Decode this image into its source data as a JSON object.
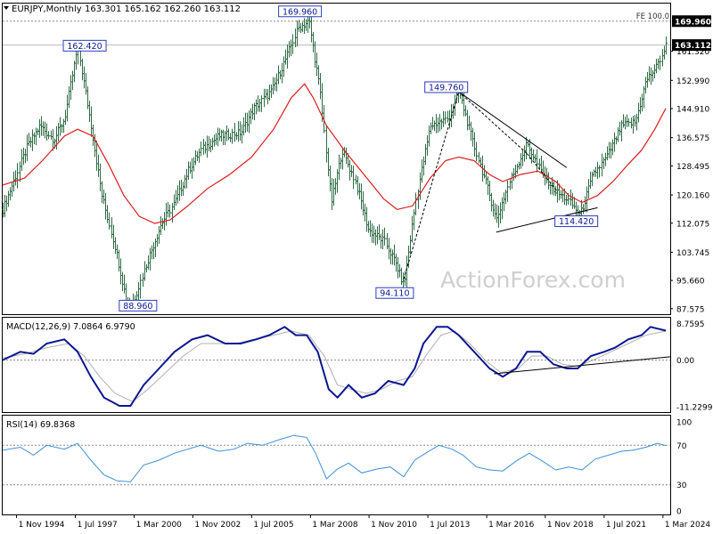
{
  "header": {
    "symbol": "EURJPY,Monthly",
    "ohlc": "163.301 165.162 162.260 163.112"
  },
  "watermark": "ActionForex.com",
  "colors": {
    "background": "#ffffff",
    "bars": "#2f6b45",
    "ma_line": "#dd1c1c",
    "macd_line": "#0c1790",
    "macd_signal": "#b0b0b0",
    "rsi_line": "#3d8fd8",
    "grid_dash": "#8a8a8a",
    "label_box_border": "#2a3cbf",
    "price_tag_bg": "#000000",
    "trendline": "#000000"
  },
  "chart_data": [
    {
      "type": "bar",
      "name": "price",
      "title": "EURJPY,Monthly",
      "ylim": [
        86.0,
        175.0
      ],
      "y_ticks": [
        "161.320",
        "152.990",
        "144.910",
        "136.575",
        "128.495",
        "120.160",
        "112.075",
        "103.745",
        "95.660",
        "87.575"
      ],
      "y_tick_values": [
        161.32,
        152.99,
        144.91,
        136.575,
        128.495,
        120.16,
        112.075,
        103.745,
        95.66,
        87.575
      ],
      "x_tick_labels": [
        "1 Nov 1994",
        "1 Jul 1997",
        "1 Mar 2000",
        "1 Nov 2002",
        "1 Jul 2005",
        "1 Mar 2008",
        "1 Nov 2010",
        "1 Jul 2013",
        "1 Mar 2016",
        "1 Nov 2018",
        "1 Jul 2021",
        "1 Mar 2024"
      ],
      "x_tick_dates": [
        1994.83,
        1997.5,
        2000.17,
        2002.83,
        2005.5,
        2008.17,
        2010.83,
        2013.5,
        2016.17,
        2018.83,
        2021.5,
        2024.17
      ],
      "xlim": [
        1994.2,
        2024.5
      ],
      "price_path": [
        [
          1994.2,
          116
        ],
        [
          1995.3,
          134
        ],
        [
          1995.9,
          140
        ],
        [
          1996.5,
          136
        ],
        [
          1997.0,
          142
        ],
        [
          1997.6,
          162.4
        ],
        [
          1998.2,
          140
        ],
        [
          1998.7,
          120
        ],
        [
          1999.3,
          105
        ],
        [
          1999.8,
          90
        ],
        [
          2000.1,
          88.96
        ],
        [
          2000.8,
          102
        ],
        [
          2001.4,
          112
        ],
        [
          2002.0,
          118
        ],
        [
          2002.6,
          127
        ],
        [
          2003.2,
          133
        ],
        [
          2004.0,
          137
        ],
        [
          2005.0,
          138
        ],
        [
          2005.6,
          145
        ],
        [
          2006.4,
          150
        ],
        [
          2007.1,
          160
        ],
        [
          2007.6,
          168
        ],
        [
          2008.1,
          169.96
        ],
        [
          2008.6,
          150
        ],
        [
          2009.1,
          118
        ],
        [
          2009.6,
          133
        ],
        [
          2010.2,
          124
        ],
        [
          2010.8,
          110
        ],
        [
          2011.5,
          107
        ],
        [
          2012.0,
          101
        ],
        [
          2012.4,
          94.11
        ],
        [
          2013.0,
          121
        ],
        [
          2013.6,
          140
        ],
        [
          2014.4,
          142
        ],
        [
          2014.9,
          149.76
        ],
        [
          2015.6,
          134
        ],
        [
          2016.2,
          122
        ],
        [
          2016.6,
          113
        ],
        [
          2017.2,
          124
        ],
        [
          2018.0,
          135
        ],
        [
          2018.6,
          127
        ],
        [
          2019.3,
          121
        ],
        [
          2019.8,
          119
        ],
        [
          2020.4,
          114.42
        ],
        [
          2021.0,
          126
        ],
        [
          2021.6,
          131
        ],
        [
          2022.3,
          140
        ],
        [
          2022.9,
          141
        ],
        [
          2023.4,
          153
        ],
        [
          2023.9,
          157
        ],
        [
          2024.3,
          163.112
        ]
      ],
      "sma_path": [
        [
          1994.2,
          123
        ],
        [
          1995.2,
          125
        ],
        [
          1996.0,
          130
        ],
        [
          1997.0,
          137
        ],
        [
          1997.6,
          139
        ],
        [
          1998.3,
          137
        ],
        [
          1999.0,
          129
        ],
        [
          1999.7,
          120
        ],
        [
          2000.4,
          114
        ],
        [
          2001.1,
          112
        ],
        [
          2001.8,
          113
        ],
        [
          2002.6,
          117
        ],
        [
          2003.5,
          122
        ],
        [
          2004.5,
          126
        ],
        [
          2005.5,
          131
        ],
        [
          2006.5,
          139
        ],
        [
          2007.3,
          148
        ],
        [
          2007.9,
          152
        ],
        [
          2008.3,
          148
        ],
        [
          2008.9,
          140
        ],
        [
          2009.7,
          133
        ],
        [
          2010.6,
          126
        ],
        [
          2011.5,
          119
        ],
        [
          2012.1,
          116
        ],
        [
          2012.8,
          117
        ],
        [
          2013.6,
          125
        ],
        [
          2014.3,
          130
        ],
        [
          2014.9,
          131
        ],
        [
          2015.6,
          130
        ],
        [
          2016.3,
          126
        ],
        [
          2016.9,
          124
        ],
        [
          2017.7,
          126
        ],
        [
          2018.5,
          127
        ],
        [
          2019.3,
          124
        ],
        [
          2019.9,
          120
        ],
        [
          2020.5,
          118
        ],
        [
          2021.2,
          120
        ],
        [
          2021.9,
          124
        ],
        [
          2022.6,
          129
        ],
        [
          2023.2,
          133
        ],
        [
          2023.8,
          139
        ],
        [
          2024.3,
          145
        ]
      ],
      "annotations": [
        {
          "label": "169.960",
          "x": 2008.1,
          "y": 169.96
        },
        {
          "label": "162.420",
          "x": 1997.6,
          "y": 162.42
        },
        {
          "label": "149.760",
          "x": 2014.9,
          "y": 149.76
        },
        {
          "label": "114.420",
          "x": 2020.4,
          "y": 114.42
        },
        {
          "label": "94.110",
          "x": 2012.4,
          "y": 94.11
        },
        {
          "label": "88.960",
          "x": 2000.1,
          "y": 88.96
        }
      ],
      "fe_label": "FE 100.0",
      "fe_level": 169.96,
      "current_price_label": "163.112",
      "current_price": 163.112,
      "top_level_label": "169.960"
    },
    {
      "type": "line",
      "name": "macd",
      "title": "MACD(12,26,9) 7.0864 6.9790",
      "ylim": [
        -12.5,
        10.2
      ],
      "y_ticks": [
        "8.7595",
        "0.00",
        "-11.2299"
      ],
      "y_tick_values": [
        8.7595,
        0.0,
        -11.2299
      ],
      "macd_path": [
        [
          1994.2,
          0
        ],
        [
          1995.0,
          2
        ],
        [
          1995.6,
          1.5
        ],
        [
          1996.2,
          4
        ],
        [
          1997.0,
          5
        ],
        [
          1997.6,
          2
        ],
        [
          1998.2,
          -4
        ],
        [
          1998.8,
          -9
        ],
        [
          1999.5,
          -11
        ],
        [
          2000.0,
          -11
        ],
        [
          2000.6,
          -6
        ],
        [
          2001.3,
          -2
        ],
        [
          2002.0,
          2
        ],
        [
          2002.8,
          5
        ],
        [
          2003.5,
          6
        ],
        [
          2004.3,
          4
        ],
        [
          2005.0,
          4
        ],
        [
          2005.7,
          5
        ],
        [
          2006.3,
          6
        ],
        [
          2007.0,
          8
        ],
        [
          2007.5,
          6
        ],
        [
          2008.0,
          6
        ],
        [
          2008.5,
          2
        ],
        [
          2009.0,
          -7
        ],
        [
          2009.4,
          -9
        ],
        [
          2009.9,
          -6
        ],
        [
          2010.5,
          -9
        ],
        [
          2011.1,
          -8
        ],
        [
          2011.7,
          -5
        ],
        [
          2012.4,
          -6
        ],
        [
          2012.9,
          -2
        ],
        [
          2013.3,
          4
        ],
        [
          2013.9,
          8
        ],
        [
          2014.4,
          8
        ],
        [
          2014.9,
          6
        ],
        [
          2015.6,
          2
        ],
        [
          2016.3,
          -2
        ],
        [
          2016.9,
          -4
        ],
        [
          2017.5,
          -2
        ],
        [
          2018.0,
          2
        ],
        [
          2018.6,
          2
        ],
        [
          2019.2,
          -1
        ],
        [
          2019.8,
          -2
        ],
        [
          2020.3,
          -2
        ],
        [
          2020.9,
          1
        ],
        [
          2021.5,
          2
        ],
        [
          2022.0,
          3
        ],
        [
          2022.6,
          5
        ],
        [
          2023.2,
          6
        ],
        [
          2023.6,
          8
        ],
        [
          2024.3,
          7.0864
        ]
      ],
      "signal_path": [
        [
          1994.2,
          0.5
        ],
        [
          1995.2,
          1.5
        ],
        [
          1996.2,
          3
        ],
        [
          1997.2,
          4
        ],
        [
          1997.9,
          1
        ],
        [
          1998.6,
          -4
        ],
        [
          1999.3,
          -8
        ],
        [
          2000.1,
          -10
        ],
        [
          2000.8,
          -7
        ],
        [
          2001.6,
          -3
        ],
        [
          2002.4,
          1
        ],
        [
          2003.2,
          4
        ],
        [
          2004.0,
          4
        ],
        [
          2004.8,
          4
        ],
        [
          2005.6,
          5
        ],
        [
          2006.5,
          6
        ],
        [
          2007.3,
          7
        ],
        [
          2008.1,
          6
        ],
        [
          2008.8,
          1
        ],
        [
          2009.4,
          -6
        ],
        [
          2010.0,
          -7
        ],
        [
          2010.7,
          -8
        ],
        [
          2011.4,
          -7
        ],
        [
          2012.1,
          -5
        ],
        [
          2012.8,
          -4
        ],
        [
          2013.4,
          1
        ],
        [
          2014.1,
          6
        ],
        [
          2014.7,
          7
        ],
        [
          2015.4,
          4
        ],
        [
          2016.1,
          0
        ],
        [
          2016.8,
          -3
        ],
        [
          2017.6,
          -2
        ],
        [
          2018.2,
          1
        ],
        [
          2018.9,
          1
        ],
        [
          2019.6,
          -1
        ],
        [
          2020.3,
          -1.5
        ],
        [
          2021.0,
          0
        ],
        [
          2021.8,
          2
        ],
        [
          2022.6,
          4
        ],
        [
          2023.4,
          6
        ],
        [
          2024.3,
          6.979
        ]
      ],
      "trendline": [
        [
          2016.5,
          -3.3
        ],
        [
          2024.5,
          0.8
        ]
      ]
    },
    {
      "type": "line",
      "name": "rsi",
      "title": "RSI(14) 69.8368",
      "ylim": [
        0,
        100
      ],
      "y_ticks": [
        "100",
        "70",
        "30",
        "0"
      ],
      "y_tick_values": [
        100,
        70,
        30,
        0
      ],
      "rsi_path": [
        [
          1994.2,
          65
        ],
        [
          1995.0,
          68
        ],
        [
          1995.6,
          60
        ],
        [
          1996.2,
          70
        ],
        [
          1997.0,
          66
        ],
        [
          1997.6,
          72
        ],
        [
          1998.2,
          55
        ],
        [
          1998.8,
          40
        ],
        [
          1999.4,
          34
        ],
        [
          2000.0,
          33
        ],
        [
          2000.6,
          50
        ],
        [
          2001.3,
          55
        ],
        [
          2002.0,
          62
        ],
        [
          2002.6,
          66
        ],
        [
          2003.2,
          70
        ],
        [
          2004.0,
          64
        ],
        [
          2004.7,
          66
        ],
        [
          2005.3,
          72
        ],
        [
          2006.0,
          70
        ],
        [
          2006.8,
          76
        ],
        [
          2007.4,
          80
        ],
        [
          2008.0,
          78
        ],
        [
          2008.4,
          62
        ],
        [
          2008.9,
          36
        ],
        [
          2009.4,
          46
        ],
        [
          2009.9,
          52
        ],
        [
          2010.5,
          42
        ],
        [
          2011.2,
          46
        ],
        [
          2011.8,
          48
        ],
        [
          2012.4,
          38
        ],
        [
          2012.9,
          55
        ],
        [
          2013.4,
          62
        ],
        [
          2014.0,
          70
        ],
        [
          2014.6,
          66
        ],
        [
          2015.1,
          60
        ],
        [
          2015.7,
          48
        ],
        [
          2016.3,
          45
        ],
        [
          2016.9,
          44
        ],
        [
          2017.5,
          54
        ],
        [
          2018.1,
          62
        ],
        [
          2018.7,
          54
        ],
        [
          2019.3,
          45
        ],
        [
          2019.9,
          48
        ],
        [
          2020.5,
          45
        ],
        [
          2021.1,
          56
        ],
        [
          2021.7,
          60
        ],
        [
          2022.3,
          64
        ],
        [
          2022.8,
          65
        ],
        [
          2023.4,
          68
        ],
        [
          2023.9,
          72
        ],
        [
          2024.3,
          69.8368
        ]
      ]
    }
  ]
}
